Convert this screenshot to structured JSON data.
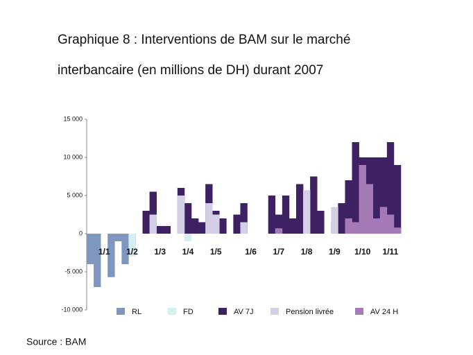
{
  "chart_data": {
    "type": "bar",
    "title": [
      "Graphique 8 : Interventions de BAM sur le marché",
      "interbancaire (en millions de DH) durant 2007"
    ],
    "source": "Source : BAM",
    "categories": [
      null,
      null,
      "1/1",
      null,
      null,
      null,
      "1/2",
      null,
      null,
      null,
      "1/3",
      null,
      null,
      null,
      "1/4",
      null,
      null,
      null,
      "1/5",
      null,
      null,
      null,
      null,
      "1/6",
      null,
      null,
      null,
      "1/7",
      null,
      null,
      null,
      "1/8",
      null,
      null,
      null,
      "1/9",
      null,
      null,
      null,
      "1/10",
      null,
      null,
      null,
      "1/11",
      null
    ],
    "ylim": [
      -10000,
      15000
    ],
    "yticks": [
      {
        "value": 15000,
        "label": "15 000"
      },
      {
        "value": 10000,
        "label": "10 000"
      },
      {
        "value": 5000,
        "label": "5 000"
      },
      0,
      {
        "value": -5000,
        "label": "-5 000"
      },
      {
        "value": -10000,
        "label": "-10 000"
      }
    ],
    "series": [
      {
        "name": "AV 7J",
        "color": "#3d2163",
        "values": [
          null,
          null,
          null,
          null,
          null,
          null,
          null,
          null,
          3000,
          5500,
          1000,
          1000,
          null,
          6000,
          4000,
          2000,
          1500,
          6500,
          3000,
          2000,
          null,
          2500,
          4000,
          null,
          null,
          null,
          5000,
          2500,
          5000,
          2000,
          6500,
          null,
          7500,
          3000,
          null,
          1500,
          4000,
          7000,
          12000,
          10000,
          10000,
          10000,
          10000,
          12000,
          9000
        ]
      },
      {
        "name": "Pension livrée",
        "color": "#d3cfe6",
        "values": [
          null,
          null,
          null,
          null,
          null,
          null,
          null,
          null,
          null,
          2500,
          null,
          null,
          null,
          5000,
          null,
          null,
          null,
          4000,
          2500,
          null,
          null,
          null,
          1500,
          null,
          null,
          null,
          null,
          null,
          null,
          null,
          null,
          5700,
          null,
          null,
          null,
          3500,
          null,
          null,
          null,
          null,
          null,
          null,
          null,
          null,
          null
        ]
      },
      {
        "name": "AV 24 H",
        "color": "#a67ab6",
        "values": [
          null,
          null,
          null,
          null,
          null,
          null,
          null,
          null,
          null,
          null,
          null,
          null,
          null,
          null,
          null,
          null,
          null,
          null,
          null,
          null,
          null,
          null,
          null,
          null,
          null,
          null,
          null,
          700,
          null,
          null,
          null,
          null,
          null,
          null,
          null,
          null,
          null,
          2000,
          1500,
          9000,
          6500,
          2000,
          3500,
          2500,
          800
        ]
      },
      {
        "name": "RL",
        "color": "#7f96c0",
        "values": [
          -4000,
          -7000,
          null,
          -5700,
          -1000,
          -4000,
          -1500,
          null,
          null,
          null,
          null,
          null,
          null,
          null,
          null,
          null,
          null,
          null,
          null,
          null,
          null,
          null,
          null,
          null,
          null,
          null,
          null,
          null,
          null,
          null,
          null,
          null,
          null,
          null,
          null,
          null,
          null,
          null,
          null,
          null,
          null,
          null,
          null,
          null,
          null
        ]
      },
      {
        "name": "FD",
        "color": "#d4eef4",
        "values": [
          null,
          null,
          null,
          null,
          null,
          null,
          -3000,
          null,
          null,
          null,
          null,
          null,
          null,
          null,
          -1000,
          null,
          null,
          null,
          null,
          null,
          null,
          null,
          null,
          null,
          null,
          null,
          null,
          null,
          null,
          null,
          null,
          null,
          null,
          null,
          null,
          null,
          null,
          null,
          null,
          null,
          null,
          null,
          null,
          null,
          null
        ]
      }
    ],
    "legend_order": [
      3,
      4,
      0,
      1,
      2
    ]
  }
}
